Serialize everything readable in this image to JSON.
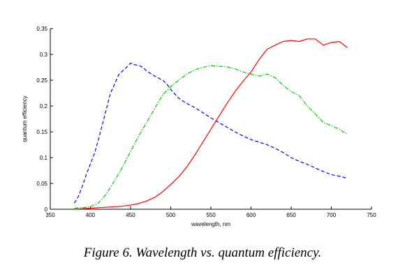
{
  "caption": "Figure 6. Wavelength vs. quantum efficiency.",
  "chart_data": {
    "type": "line",
    "title": "",
    "xlabel": "wavelength, nm",
    "ylabel": "quantum efficiency",
    "xlim": [
      350,
      750
    ],
    "ylim": [
      0,
      0.35
    ],
    "xticks": [
      350,
      400,
      450,
      500,
      550,
      600,
      650,
      700,
      750
    ],
    "yticks": [
      0,
      0.05,
      0.1,
      0.15,
      0.2,
      0.25,
      0.3,
      0.35
    ],
    "xtick_labels": [
      "350",
      "400",
      "450",
      "500",
      "550",
      "600",
      "650",
      "700",
      "750"
    ],
    "ytick_labels": [
      "0",
      "0.05",
      "0.1",
      "0.15",
      "0.2",
      "0.25",
      "0.3",
      "0.35"
    ],
    "grid": false,
    "legend": "none",
    "series": [
      {
        "color": "#0000ff",
        "style": "dashed",
        "x": [
          380,
          385,
          390,
          395,
          400,
          405,
          410,
          415,
          420,
          425,
          430,
          435,
          440,
          445,
          450,
          455,
          460,
          465,
          470,
          475,
          480,
          485,
          490,
          495,
          500,
          510,
          520,
          530,
          540,
          550,
          560,
          570,
          580,
          590,
          600,
          610,
          620,
          630,
          640,
          650,
          660,
          670,
          680,
          690,
          700,
          710,
          720
        ],
        "y": [
          0.012,
          0.025,
          0.045,
          0.068,
          0.088,
          0.108,
          0.135,
          0.165,
          0.195,
          0.225,
          0.242,
          0.26,
          0.268,
          0.275,
          0.283,
          0.28,
          0.279,
          0.275,
          0.268,
          0.263,
          0.258,
          0.254,
          0.25,
          0.243,
          0.232,
          0.215,
          0.205,
          0.197,
          0.187,
          0.177,
          0.168,
          0.159,
          0.15,
          0.142,
          0.135,
          0.13,
          0.125,
          0.118,
          0.11,
          0.1,
          0.093,
          0.087,
          0.08,
          0.073,
          0.067,
          0.064,
          0.06
        ]
      },
      {
        "color": "#00cc00",
        "style": "dashdot",
        "x": [
          380,
          390,
          400,
          410,
          420,
          430,
          440,
          450,
          460,
          470,
          480,
          490,
          500,
          510,
          520,
          530,
          540,
          550,
          560,
          570,
          580,
          590,
          600,
          610,
          620,
          630,
          640,
          650,
          660,
          670,
          680,
          690,
          700,
          710,
          720
        ],
        "y": [
          0.002,
          0.003,
          0.005,
          0.012,
          0.03,
          0.055,
          0.082,
          0.112,
          0.142,
          0.168,
          0.195,
          0.222,
          0.238,
          0.25,
          0.262,
          0.27,
          0.275,
          0.278,
          0.277,
          0.276,
          0.272,
          0.266,
          0.262,
          0.258,
          0.262,
          0.255,
          0.24,
          0.228,
          0.22,
          0.2,
          0.185,
          0.168,
          0.162,
          0.155,
          0.145
        ]
      },
      {
        "color": "#ff0000",
        "style": "solid",
        "x": [
          380,
          400,
          420,
          440,
          450,
          460,
          470,
          480,
          490,
          500,
          510,
          520,
          530,
          540,
          550,
          560,
          570,
          580,
          590,
          600,
          610,
          620,
          630,
          640,
          650,
          660,
          670,
          680,
          690,
          700,
          710,
          720
        ],
        "y": [
          0.0,
          0.002,
          0.004,
          0.006,
          0.008,
          0.011,
          0.016,
          0.023,
          0.034,
          0.048,
          0.063,
          0.082,
          0.105,
          0.13,
          0.155,
          0.18,
          0.205,
          0.228,
          0.248,
          0.266,
          0.29,
          0.31,
          0.318,
          0.325,
          0.327,
          0.325,
          0.33,
          0.33,
          0.318,
          0.323,
          0.325,
          0.313
        ]
      }
    ]
  }
}
